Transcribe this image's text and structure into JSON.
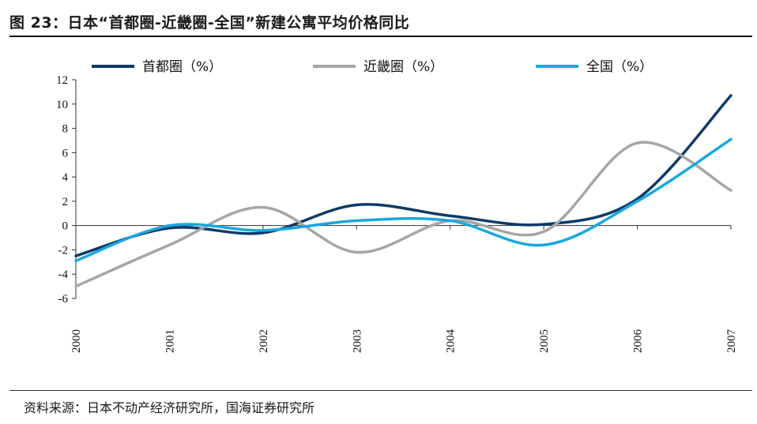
{
  "figure": {
    "title": "图 23：日本“首都圈-近畿圈-全国”新建公寓平均价格同比",
    "source": "资料来源：日本不动产经济研究所，国海证券研究所"
  },
  "chart_data": {
    "type": "line",
    "x": [
      "2000",
      "2001",
      "2002",
      "2003",
      "2004",
      "2005",
      "2006",
      "2007"
    ],
    "ylim": [
      -6,
      12
    ],
    "yticks": [
      "12",
      "10",
      "8",
      "6",
      "4",
      "2",
      "0",
      "-2",
      "-4",
      "-6"
    ],
    "grid": false,
    "legend_position": "top",
    "smooth": true,
    "series": [
      {
        "name": "首都圈（%）",
        "color": "#0d3b66",
        "values": [
          -2.5,
          -0.2,
          -0.6,
          1.7,
          0.8,
          0.1,
          2.2,
          10.7
        ]
      },
      {
        "name": "近畿圈（%）",
        "color": "#a6a6a6",
        "values": [
          -5.0,
          -1.6,
          1.5,
          -2.2,
          0.4,
          -0.5,
          6.8,
          2.9
        ]
      },
      {
        "name": "全国（%）",
        "color": "#1aa7e0",
        "values": [
          -2.9,
          0.0,
          -0.4,
          0.4,
          0.4,
          -1.6,
          2.0,
          7.1
        ]
      }
    ]
  }
}
